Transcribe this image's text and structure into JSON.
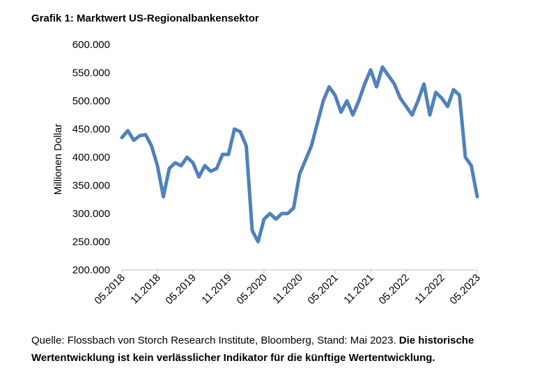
{
  "title": "Grafik 1: Marktwert US-Regionalbankensektor",
  "source": {
    "text": "Quelle: Flossbach von Storch Research Institute, Bloomberg, Stand: Mai 2023.",
    "bold": "Die historische Wertentwicklung ist kein verlässlicher Indikator für die künftige Wertentwicklung."
  },
  "chart_data": {
    "type": "line",
    "title": "Grafik 1: Marktwert US-Regionalbankensektor",
    "xlabel": "",
    "ylabel": "Millionen Dollar",
    "ylim": [
      200000,
      600000
    ],
    "yticks": [
      "200.000",
      "250.000",
      "300.000",
      "350.000",
      "400.000",
      "450.000",
      "500.000",
      "550.000",
      "600.000"
    ],
    "xticks": [
      "05.2018",
      "11.2018",
      "05.2019",
      "11.2019",
      "05.2020",
      "11.2020",
      "05.2021",
      "11.2021",
      "05.2022",
      "11.2022",
      "05.2023"
    ],
    "grid": false,
    "legend": "none",
    "color": "#4f81bd",
    "series": [
      {
        "x": [
          "2018-05",
          "2018-06",
          "2018-07",
          "2018-08",
          "2018-09",
          "2018-10",
          "2018-11",
          "2018-12",
          "2019-01",
          "2019-02",
          "2019-03",
          "2019-04",
          "2019-05",
          "2019-06",
          "2019-07",
          "2019-08",
          "2019-09",
          "2019-10",
          "2019-11",
          "2019-12",
          "2020-01",
          "2020-02",
          "2020-03",
          "2020-04",
          "2020-05",
          "2020-06",
          "2020-07",
          "2020-08",
          "2020-09",
          "2020-10",
          "2020-11",
          "2020-12",
          "2021-01",
          "2021-02",
          "2021-03",
          "2021-04",
          "2021-05",
          "2021-06",
          "2021-07",
          "2021-08",
          "2021-09",
          "2021-10",
          "2021-11",
          "2021-12",
          "2022-01",
          "2022-02",
          "2022-03",
          "2022-04",
          "2022-05",
          "2022-06",
          "2022-07",
          "2022-08",
          "2022-09",
          "2022-10",
          "2022-11",
          "2022-12",
          "2023-01",
          "2023-02",
          "2023-03",
          "2023-04",
          "2023-05"
        ],
        "values": [
          435000,
          447000,
          430000,
          438000,
          440000,
          420000,
          385000,
          330000,
          380000,
          390000,
          385000,
          400000,
          390000,
          365000,
          385000,
          375000,
          380000,
          405000,
          405000,
          450000,
          445000,
          420000,
          270000,
          250000,
          290000,
          300000,
          290000,
          300000,
          300000,
          310000,
          370000,
          395000,
          420000,
          460000,
          500000,
          525000,
          510000,
          480000,
          500000,
          475000,
          500000,
          530000,
          555000,
          525000,
          560000,
          545000,
          530000,
          505000,
          490000,
          475000,
          500000,
          530000,
          475000,
          515000,
          505000,
          490000,
          520000,
          510000,
          400000,
          385000,
          330000
        ]
      }
    ]
  }
}
